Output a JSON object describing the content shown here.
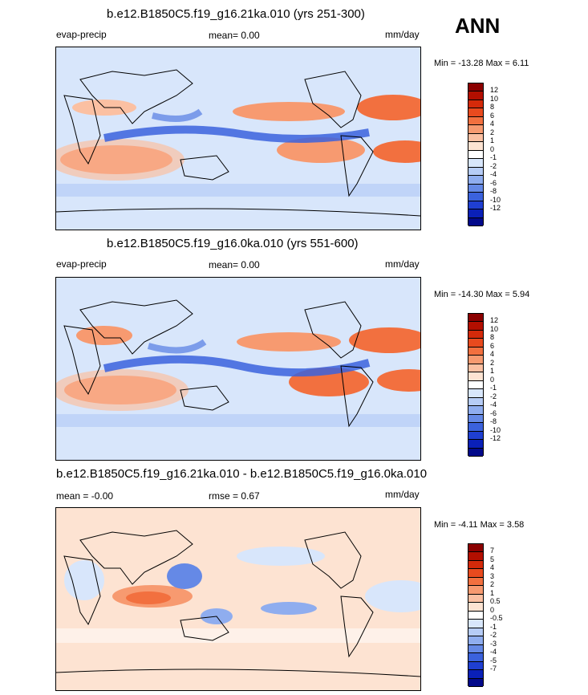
{
  "season": "ANN",
  "units": "mm/day",
  "variable": "evap-precip",
  "chart_data": [
    {
      "type": "heatmap",
      "title": "b.e12.B1850C5.f19_g16.21ka.010 (yrs 251-300)",
      "left_label": "evap-precip",
      "center_label": "mean=  0.00",
      "right_label": "mm/day",
      "minmax": "Min = -13.28 Max =  6.11",
      "levels": [
        "12",
        "10",
        "8",
        "6",
        "4",
        "2",
        "1",
        "0",
        "-1",
        "-2",
        "-4",
        "-6",
        "-8",
        "-10",
        "-12"
      ],
      "colors": [
        "#8b0000",
        "#b30f00",
        "#d42a0a",
        "#e84a1e",
        "#f2703f",
        "#f79a70",
        "#fbc0a2",
        "#fde3d2",
        "#ffffff",
        "#d8e6fb",
        "#b6ccf6",
        "#8fadef",
        "#6589e6",
        "#3b62dd",
        "#1f3fd2",
        "#0a20b8",
        "#02098a"
      ]
    },
    {
      "type": "heatmap",
      "title": "b.e12.B1850C5.f19_g16.0ka.010 (yrs 551-600)",
      "left_label": "evap-precip",
      "center_label": "mean=  0.00",
      "right_label": "mm/day",
      "minmax": "Min = -14.30 Max =  5.94",
      "levels": [
        "12",
        "10",
        "8",
        "6",
        "4",
        "2",
        "1",
        "0",
        "-1",
        "-2",
        "-4",
        "-6",
        "-8",
        "-10",
        "-12"
      ],
      "colors": [
        "#8b0000",
        "#b30f00",
        "#d42a0a",
        "#e84a1e",
        "#f2703f",
        "#f79a70",
        "#fbc0a2",
        "#fde3d2",
        "#ffffff",
        "#d8e6fb",
        "#b6ccf6",
        "#8fadef",
        "#6589e6",
        "#3b62dd",
        "#1f3fd2",
        "#0a20b8",
        "#02098a"
      ]
    },
    {
      "type": "heatmap",
      "title": "b.e12.B1850C5.f19_g16.21ka.010 - b.e12.B1850C5.f19_g16.0ka.010",
      "left_label": "mean =  -0.00",
      "center_label": "rmse =   0.67",
      "right_label": "mm/day",
      "minmax": "Min =  -4.11 Max =   3.58",
      "levels": [
        "7",
        "5",
        "4",
        "3",
        "2",
        "1",
        "0.5",
        "0",
        "-0.5",
        "-1",
        "-2",
        "-3",
        "-4",
        "-5",
        "-7"
      ],
      "colors": [
        "#8b0000",
        "#b30f00",
        "#d42a0a",
        "#e84a1e",
        "#f2703f",
        "#f79a70",
        "#fbc0a2",
        "#fde3d2",
        "#ffffff",
        "#d8e6fb",
        "#b6ccf6",
        "#8fadef",
        "#6589e6",
        "#3b62dd",
        "#1f3fd2",
        "#0a20b8",
        "#02098a"
      ]
    }
  ]
}
